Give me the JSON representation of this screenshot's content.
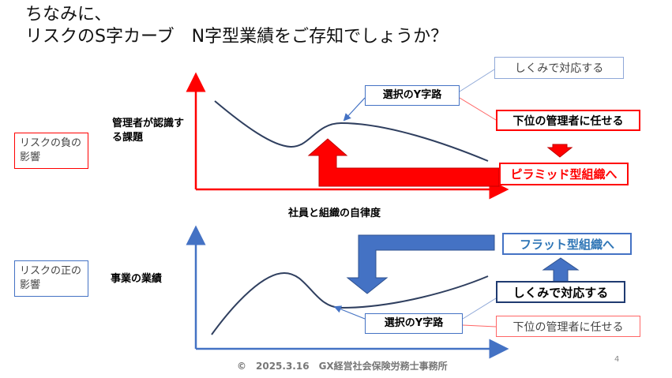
{
  "title": {
    "line1": "ちなみに、",
    "line2": "リスクのS字カーブ　N字型業績をご存知でしょうか？"
  },
  "top_diagram": {
    "side_label": "リスクの負の影響",
    "y_label": "管理者が認識する課題",
    "crossroads": "選択のY字路",
    "option_upper": "しくみで対応する",
    "option_lower": "下位の管理者に任せる",
    "result": "ピラミッド型組織へ"
  },
  "x_label": "社員と組織の自律度",
  "bottom_diagram": {
    "side_label": "リスクの正の影響",
    "y_label": "事業の業績",
    "crossroads": "選択のY字路",
    "option_upper": "しくみで対応する",
    "option_lower": "下位の管理者に任せる",
    "result": "フラット型組織へ"
  },
  "footer": "©　2025.3.16　GX経営社会保険労務士事務所",
  "page_number": "4",
  "colors": {
    "red": "#ff0000",
    "blue": "#4472c4",
    "navy": "#1f3a70",
    "curve": "#2f3f5f",
    "callout_red": "#ff6666",
    "callout_blue": "#8fa8d8"
  }
}
